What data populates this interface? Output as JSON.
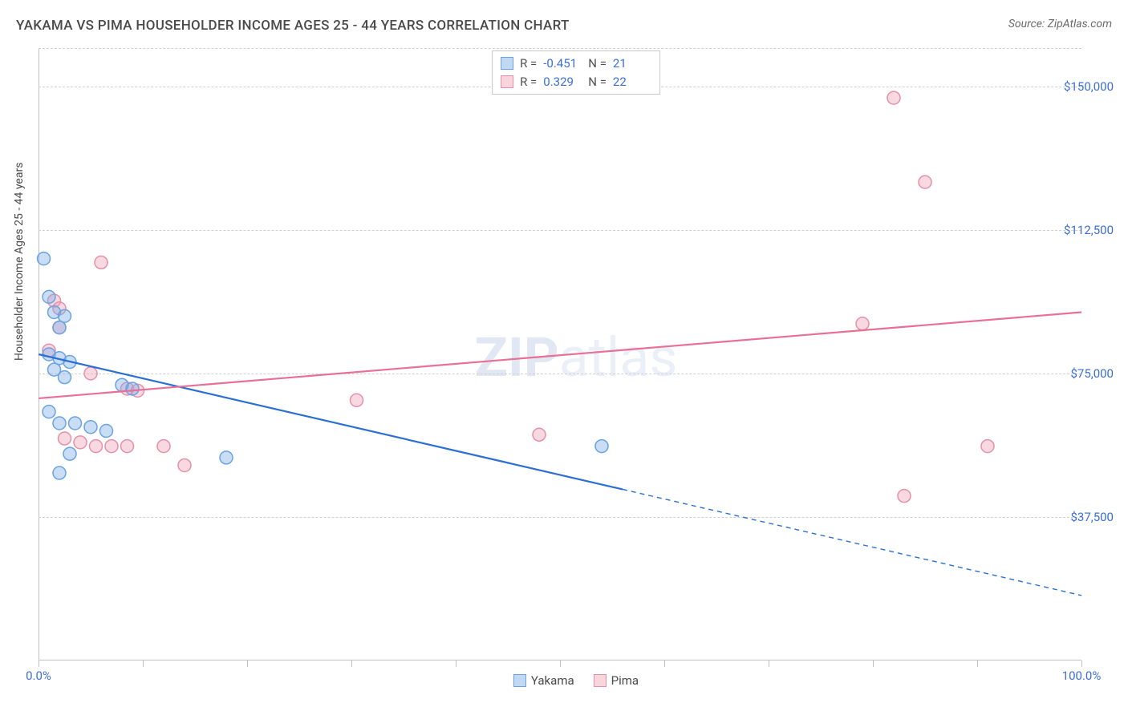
{
  "title": "YAKAMA VS PIMA HOUSEHOLDER INCOME AGES 25 - 44 YEARS CORRELATION CHART",
  "source": "Source: ZipAtlas.com",
  "ylabel": "Householder Income Ages 25 - 44 years",
  "watermark_bold": "ZIP",
  "watermark_rest": "atlas",
  "chart": {
    "type": "scatter-regression",
    "background_color": "#ffffff",
    "grid_color": "#d0d0d0",
    "grid_dash": "4,4",
    "axis_color": "#c0c0c0",
    "text_color": "#4a4a4a",
    "value_color": "#3b6fd6",
    "xlim": [
      0,
      100
    ],
    "ylim": [
      0,
      160000
    ],
    "x_tick_positions": [
      0,
      10,
      20,
      30,
      40,
      50,
      60,
      70,
      80,
      90,
      100
    ],
    "x_tick_labels": {
      "0": "0.0%",
      "100": "100.0%"
    },
    "y_tick_positions": [
      37500,
      75000,
      112500,
      150000
    ],
    "y_tick_labels": {
      "37500": "$37,500",
      "75000": "$75,000",
      "112500": "$112,500",
      "150000": "$150,000"
    },
    "marker_radius": 8,
    "marker_stroke_width": 1.5,
    "line_width": 2.2,
    "series": {
      "yakama": {
        "label": "Yakama",
        "R": "-0.451",
        "N": "21",
        "fill": "rgba(120,170,230,0.40)",
        "stroke": "#6aa3e0",
        "line_color": "#2b6fd4",
        "regression": {
          "x1": 0,
          "y1": 80000,
          "x2": 100,
          "y2": 17000,
          "data_x_max": 56
        },
        "points": [
          [
            0.5,
            105000
          ],
          [
            1.0,
            95000
          ],
          [
            1.5,
            91000
          ],
          [
            2.0,
            87000
          ],
          [
            2.5,
            90000
          ],
          [
            1.0,
            80000
          ],
          [
            2.0,
            79000
          ],
          [
            3.0,
            78000
          ],
          [
            1.5,
            76000
          ],
          [
            2.5,
            74000
          ],
          [
            8.0,
            72000
          ],
          [
            9.0,
            71000
          ],
          [
            2.0,
            62000
          ],
          [
            3.5,
            62000
          ],
          [
            5.0,
            61000
          ],
          [
            6.5,
            60000
          ],
          [
            3.0,
            54000
          ],
          [
            18.0,
            53000
          ],
          [
            2.0,
            49000
          ],
          [
            1.0,
            65000
          ],
          [
            54.0,
            56000
          ]
        ]
      },
      "pima": {
        "label": "Pima",
        "R": "0.329",
        "N": "22",
        "fill": "rgba(240,160,180,0.40)",
        "stroke": "#e590aa",
        "line_color": "#e86f95",
        "regression": {
          "x1": 0,
          "y1": 68500,
          "x2": 100,
          "y2": 91000,
          "data_x_max": 100
        },
        "points": [
          [
            6.0,
            104000
          ],
          [
            1.5,
            94000
          ],
          [
            2.0,
            92000
          ],
          [
            2.0,
            87000
          ],
          [
            5.0,
            75000
          ],
          [
            8.5,
            71000
          ],
          [
            9.5,
            70500
          ],
          [
            2.5,
            58000
          ],
          [
            4.0,
            57000
          ],
          [
            5.5,
            56000
          ],
          [
            7.0,
            56000
          ],
          [
            8.5,
            56000
          ],
          [
            14.0,
            51000
          ],
          [
            12.0,
            56000
          ],
          [
            30.5,
            68000
          ],
          [
            48.0,
            59000
          ],
          [
            79.0,
            88000
          ],
          [
            82.0,
            147000
          ],
          [
            85.0,
            125000
          ],
          [
            83.0,
            43000
          ],
          [
            91.0,
            56000
          ],
          [
            1.0,
            81000
          ]
        ]
      }
    },
    "stats_box": {
      "rows": [
        {
          "series": "yakama",
          "r_label": "R =",
          "n_label": "N ="
        },
        {
          "series": "pima",
          "r_label": "R =",
          "n_label": "N ="
        }
      ]
    }
  }
}
